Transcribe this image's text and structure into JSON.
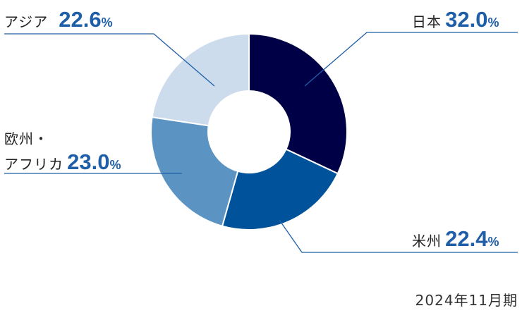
{
  "chart_data": {
    "type": "donut",
    "slices": [
      {
        "name": "日本",
        "value": 32.0,
        "value_label": "32.0",
        "unit": "%",
        "color": "#000047"
      },
      {
        "name": "米州",
        "value": 22.4,
        "value_label": "22.4",
        "unit": "%",
        "color": "#00539a"
      },
      {
        "name": "欧州・アフリカ",
        "name_line1": "欧州・",
        "name_line2": "アフリカ",
        "value": 23.0,
        "value_label": "23.0",
        "unit": "%",
        "color": "#5b94c3"
      },
      {
        "name": "アジア",
        "value": 22.6,
        "value_label": "22.6",
        "unit": "%",
        "color": "#ccdcec"
      }
    ],
    "footnote": "2024年11月期"
  }
}
